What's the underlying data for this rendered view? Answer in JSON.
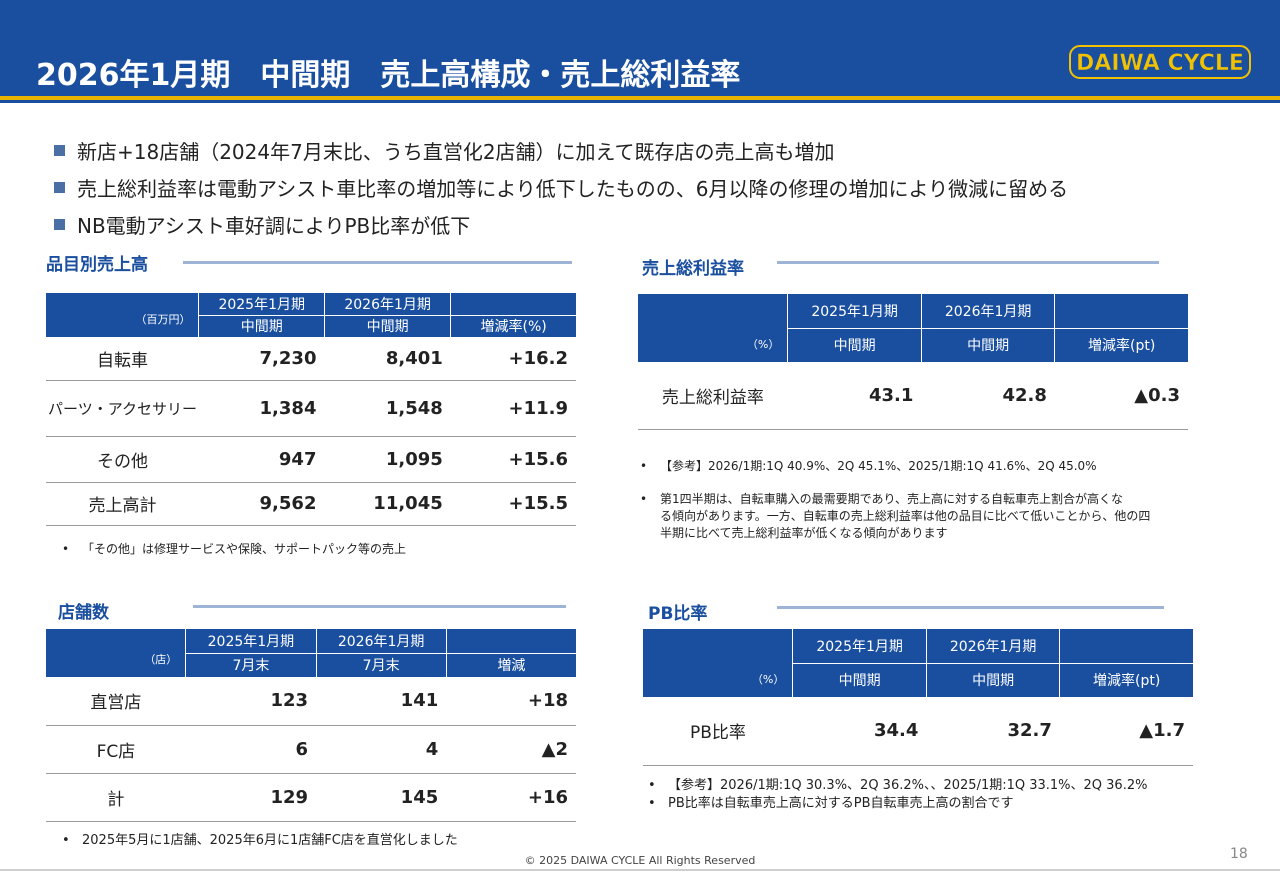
{
  "header": {
    "title": "2026年1月期　中間期　売上高構成・売上総利益率",
    "logo_text": "DAIWA CYCLE"
  },
  "bullets": [
    "新店+18店舗（2024年7月末比、うち直営化2店舗）に加えて既存店の売上高も増加",
    "売上総利益率は電動アシスト車比率の増加等により低下したものの、6月以降の修理の増加により微減に留める",
    "NB電動アシスト車好調によりPB比率が低下"
  ],
  "sales": {
    "title": "品目別売上高",
    "unit": "（百万円）",
    "headers": {
      "p1_top": "2025年1月期",
      "p2_top": "2026年1月期",
      "p1_bot": "中間期",
      "p2_bot": "中間期",
      "chg": "増減率(%)"
    },
    "rows": [
      {
        "label": "自転車",
        "v1": "7,230",
        "v2": "8,401",
        "chg": "+16.2"
      },
      {
        "label": "パーツ・アクセサリー",
        "v1": "1,384",
        "v2": "1,548",
        "chg": "+11.9"
      },
      {
        "label": "その他",
        "v1": "947",
        "v2": "1,095",
        "chg": "+15.6"
      },
      {
        "label": "売上高計",
        "v1": "9,562",
        "v2": "11,045",
        "chg": "+15.5"
      }
    ],
    "note": "「その他」は修理サービスや保険、サポートパック等の売上"
  },
  "margin": {
    "title": "売上総利益率",
    "unit": "（%）",
    "headers": {
      "p1_top": "2025年1月期",
      "p2_top": "2026年1月期",
      "p1_bot": "中間期",
      "p2_bot": "中間期",
      "chg": "増減率(pt)"
    },
    "row": {
      "label": "売上総利益率",
      "v1": "43.1",
      "v2": "42.8",
      "chg": "▲0.3"
    },
    "notes": [
      "【参考】2026/1期:1Q 40.9%、2Q 45.1%、2025/1期:1Q 41.6%、2Q 45.0%",
      "第1四半期は、自転車購入の最需要期であり、売上高に対する自転車売上割合が高くな",
      "る傾向があります。一方、自転車の売上総利益率は他の品目に比べて低いことから、他の四",
      "半期に比べて売上総利益率が低くなる傾向があります"
    ]
  },
  "stores": {
    "title": "店舗数",
    "unit": "（店）",
    "headers": {
      "p1_top": "2025年1月期",
      "p2_top": "2026年1月期",
      "p1_bot": "7月末",
      "p2_bot": "7月末",
      "chg": "増減"
    },
    "rows": [
      {
        "label": "直営店",
        "v1": "123",
        "v2": "141",
        "chg": "+18"
      },
      {
        "label": "FC店",
        "v1": "6",
        "v2": "4",
        "chg": "▲2"
      },
      {
        "label": "計",
        "v1": "129",
        "v2": "145",
        "chg": "+16"
      }
    ],
    "note": "2025年5月に1店舗、2025年6月に1店舗FC店を直営化しました"
  },
  "pb": {
    "title": "PB比率",
    "unit": "（%）",
    "headers": {
      "p1_top": "2025年1月期",
      "p2_top": "2026年1月期",
      "p1_bot": "中間期",
      "p2_bot": "中間期",
      "chg": "増減率(pt)"
    },
    "row": {
      "label": "PB比率",
      "v1": "34.4",
      "v2": "32.7",
      "chg": "▲1.7"
    },
    "notes": [
      "【参考】2026/1期:1Q 30.3%、2Q 36.2%、、2025/1期:1Q 33.1%、2Q 36.2%",
      "PB比率は自転車売上高に対するPB自転車売上高の割合です"
    ]
  },
  "footer": {
    "copyright": "© 2025 DAIWA CYCLE All Rights Reserved",
    "page": "18"
  }
}
